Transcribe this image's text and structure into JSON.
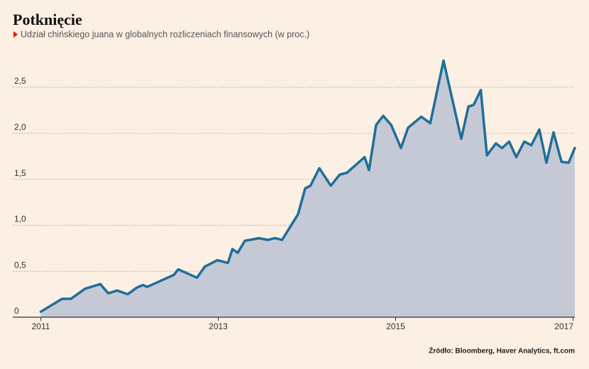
{
  "chart_data": {
    "type": "area",
    "title": "Potknięcie",
    "subtitle": "Udział chińskiego juana w globalnych rozliczeniach finansowych (w proc.)",
    "source": "Źródło: Bloomberg, Haver Analytics, ft.com",
    "color": "#1f6f9a",
    "fill": "#c5c9d6",
    "grid": true,
    "x": [
      2011.0,
      2011.24,
      2011.34,
      2011.5,
      2011.67,
      2011.76,
      2011.86,
      2011.98,
      2012.08,
      2012.15,
      2012.2,
      2012.5,
      2012.55,
      2012.76,
      2012.85,
      2012.99,
      2013.11,
      2013.16,
      2013.22,
      2013.3,
      2013.46,
      2013.56,
      2013.64,
      2013.72,
      2013.9,
      2013.98,
      2014.04,
      2014.14,
      2014.27,
      2014.37,
      2014.45,
      2014.65,
      2014.7,
      2014.78,
      2014.86,
      2014.95,
      2015.06,
      2015.14,
      2015.29,
      2015.39,
      2015.54,
      2015.74,
      2015.82,
      2015.88,
      2015.96,
      2016.03,
      2016.13,
      2016.2,
      2016.28,
      2016.36,
      2016.45,
      2016.53,
      2016.62,
      2016.7,
      2016.78,
      2016.87,
      2016.95,
      2017.02
    ],
    "values": [
      0.06,
      0.2,
      0.2,
      0.31,
      0.36,
      0.26,
      0.29,
      0.25,
      0.32,
      0.35,
      0.33,
      0.46,
      0.52,
      0.43,
      0.55,
      0.62,
      0.59,
      0.74,
      0.7,
      0.83,
      0.86,
      0.84,
      0.86,
      0.84,
      1.12,
      1.4,
      1.43,
      1.62,
      1.43,
      1.55,
      1.57,
      1.74,
      1.6,
      2.09,
      2.19,
      2.09,
      1.84,
      2.06,
      2.18,
      2.11,
      2.79,
      1.94,
      2.29,
      2.31,
      2.47,
      1.76,
      1.89,
      1.84,
      1.91,
      1.74,
      1.91,
      1.87,
      2.04,
      1.68,
      2.01,
      1.69,
      1.68,
      1.84
    ],
    "xlim": [
      2010.98,
      2017.02
    ],
    "xticks": [
      2011,
      2013,
      2015,
      2017
    ],
    "ylim": [
      0,
      2.9
    ],
    "yticks": [
      0,
      {
        "value": 0.5,
        "label": "0,5"
      },
      {
        "value": 1.0,
        "label": "1,0"
      },
      {
        "value": 1.5,
        "label": "1,5"
      },
      {
        "value": 2.0,
        "label": "2,0"
      },
      {
        "value": 2.5,
        "label": "2,5"
      }
    ]
  }
}
